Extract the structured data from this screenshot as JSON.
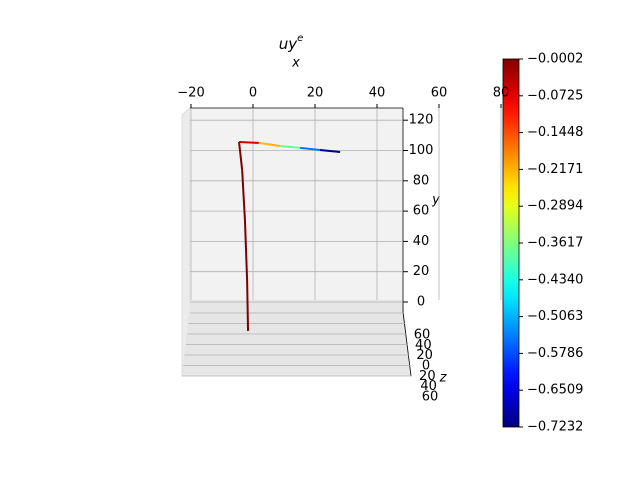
{
  "chart_data": {
    "type": "line3d",
    "title": {
      "base": "uy",
      "sup": "e"
    },
    "x_label": "x",
    "y_label": "y",
    "z_label": "z",
    "xlim": [
      -30,
      95
    ],
    "xticks": [
      {
        "value": -20,
        "label": "−20"
      },
      0,
      20,
      40,
      60,
      80
    ],
    "ylim": [
      -10,
      127
    ],
    "yticks": [
      0,
      20,
      40,
      60,
      80,
      100,
      120
    ],
    "zticks": [
      60,
      40,
      20,
      0,
      20,
      40,
      60
    ],
    "grid": true,
    "x": [
      -1.6,
      -1.9,
      -2.6,
      -3.5,
      -4.5,
      1.9,
      8.7,
      15.2,
      21.6,
      28.1
    ],
    "y": [
      -19.1,
      14.5,
      54.1,
      87.1,
      105.6,
      105,
      103,
      101.7,
      100.3,
      99
    ],
    "values": [
      -0.0002,
      -0.0002,
      -0.0002,
      -0.0002,
      -0.0002,
      -0.06,
      -0.22,
      -0.38,
      -0.55,
      -0.7232
    ],
    "colormap": "jet",
    "clim": [
      -0.7232,
      -0.0002
    ],
    "cticks": [
      {
        "value": -0.0002,
        "label": "−0.0002"
      },
      {
        "value": -0.0725,
        "label": "−0.0725"
      },
      {
        "value": -0.1448,
        "label": "−0.1448"
      },
      {
        "value": -0.2171,
        "label": "−0.2171"
      },
      {
        "value": -0.2894,
        "label": "−0.2894"
      },
      {
        "value": -0.3617,
        "label": "−0.3617"
      },
      {
        "value": -0.434,
        "label": "−0.4340"
      },
      {
        "value": -0.5063,
        "label": "−0.5063"
      },
      {
        "value": -0.5786,
        "label": "−0.5786"
      },
      {
        "value": -0.6509,
        "label": "−0.6509"
      },
      {
        "value": -0.7232,
        "label": "−0.7232"
      }
    ]
  }
}
